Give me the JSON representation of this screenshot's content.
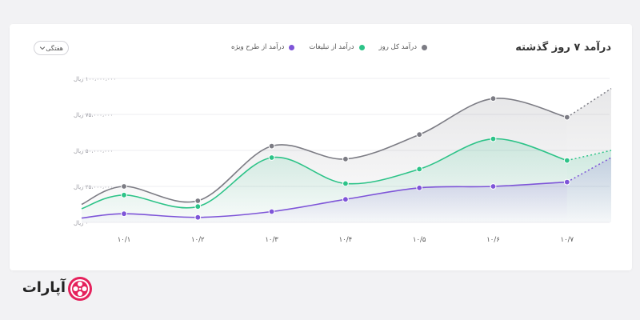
{
  "card": {
    "title": "درآمد ۷ روز گذشته",
    "period_select": "هفتگی"
  },
  "colors": {
    "total": "#7c7c84",
    "ads": "#2dc388",
    "special": "#7e55d8"
  },
  "brand": {
    "name": "آپارات",
    "logo_icon": "film-reel-icon",
    "logo_color": "#e5215c"
  },
  "chart_data": {
    "type": "line",
    "categories": [
      "۱۰/۱",
      "۱۰/۲",
      "۱۰/۳",
      "۱۰/۴",
      "۱۰/۵",
      "۱۰/۶",
      "۱۰/۷"
    ],
    "ylim": [
      0,
      100000000
    ],
    "yticks": [
      0,
      25000000,
      50000000,
      75000000,
      100000000
    ],
    "ytick_labels": [
      "۰ ریال",
      "۲۵،۰۰۰،۰۰۰ ریال",
      "۵۰،۰۰۰،۰۰۰ ریال",
      "۷۵،۰۰۰،۰۰۰ ریال",
      "۱۰۰،۰۰۰،۰۰۰ ریال"
    ],
    "grid": true,
    "legend_position": "top",
    "series": [
      {
        "name": "درآمد کل روز",
        "color_key": "total",
        "values": [
          25000000,
          15000000,
          53000000,
          44000000,
          61000000,
          86000000,
          73000000
        ],
        "projection_end": 93000000,
        "fill": true
      },
      {
        "name": "درآمد از تبلیغات",
        "color_key": "ads",
        "values": [
          19000000,
          11000000,
          45000000,
          27000000,
          37000000,
          58000000,
          43000000
        ],
        "projection_end": 50000000,
        "fill": true
      },
      {
        "name": "درآمد از طرح ویژه",
        "color_key": "special",
        "values": [
          6000000,
          3500000,
          7500000,
          16000000,
          24000000,
          25000000,
          28000000
        ],
        "projection_end": 45000000,
        "fill": true
      }
    ]
  }
}
